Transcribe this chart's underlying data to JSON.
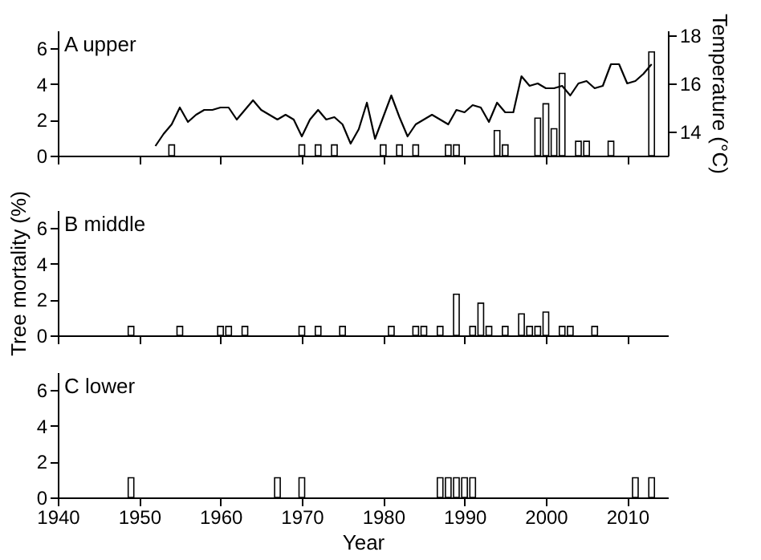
{
  "chart_data": [
    {
      "type": "bar",
      "title": "A  upper",
      "y2label": "Temperature (°C)",
      "xlim": [
        1940,
        2015
      ],
      "xticks": [
        1940,
        1950,
        1960,
        1970,
        1980,
        1990,
        2000,
        2010
      ],
      "ylim": [
        0,
        7
      ],
      "yticks": [
        0,
        2,
        4,
        6
      ],
      "y2lim": [
        13,
        18.2
      ],
      "y2ticks": [
        14,
        16,
        18
      ],
      "tick_labels": "y",
      "x": [
        1954,
        1970,
        1972,
        1974,
        1980,
        1982,
        1984,
        1988,
        1989,
        1994,
        1995,
        1999,
        2000,
        2001,
        2002,
        2004,
        2005,
        2008,
        2013
      ],
      "series": [
        {
          "type": "bar",
          "color": "#ffffff",
          "values": [
            0.6,
            0.6,
            0.6,
            0.6,
            0.6,
            0.6,
            0.6,
            0.6,
            0.6,
            1.4,
            0.6,
            2.1,
            2.9,
            1.5,
            4.6,
            0.8,
            0.8,
            0.8,
            5.8
          ]
        },
        {
          "type": "line",
          "axis": "y2",
          "color": "#000000",
          "x": [
            1952,
            1953,
            1954,
            1955,
            1956,
            1957,
            1958,
            1959,
            1960,
            1961,
            1962,
            1963,
            1964,
            1965,
            1966,
            1967,
            1968,
            1969,
            1970,
            1971,
            1972,
            1973,
            1974,
            1975,
            1976,
            1977,
            1978,
            1979,
            1980,
            1981,
            1982,
            1983,
            1984,
            1985,
            1986,
            1987,
            1988,
            1989,
            1990,
            1991,
            1992,
            1993,
            1994,
            1995,
            1996,
            1997,
            1998,
            1999,
            2000,
            2001,
            2002,
            2003,
            2004,
            2005,
            2006,
            2007,
            2008,
            2009,
            2010,
            2011,
            2012,
            2013
          ],
          "values": [
            13.4,
            13.9,
            14.3,
            15.0,
            14.4,
            14.7,
            14.9,
            14.9,
            15.0,
            15.0,
            14.5,
            14.9,
            15.3,
            14.9,
            14.7,
            14.5,
            14.7,
            14.5,
            13.8,
            14.5,
            14.9,
            14.5,
            14.6,
            14.3,
            13.5,
            14.1,
            15.2,
            13.7,
            14.6,
            15.5,
            14.6,
            13.8,
            14.3,
            14.5,
            14.7,
            14.5,
            14.3,
            14.9,
            14.8,
            15.1,
            15.0,
            14.4,
            15.2,
            14.8,
            14.8,
            16.3,
            15.9,
            16.0,
            15.8,
            15.8,
            15.9,
            15.5,
            16.0,
            16.1,
            15.8,
            15.9,
            16.8,
            16.8,
            16.0,
            16.1,
            16.4,
            16.8
          ]
        }
      ]
    },
    {
      "type": "bar",
      "title": "B  middle",
      "ylabel": "Tree mortality (%)",
      "xlim": [
        1940,
        2015
      ],
      "xticks": [
        1940,
        1950,
        1960,
        1970,
        1980,
        1990,
        2000,
        2010
      ],
      "ylim": [
        0,
        7
      ],
      "yticks": [
        0,
        2,
        4,
        6
      ],
      "tick_labels": "y",
      "color": "#ffffff",
      "x": [
        1949,
        1955,
        1960,
        1961,
        1963,
        1970,
        1972,
        1975,
        1981,
        1984,
        1985,
        1987,
        1989,
        1991,
        1992,
        1993,
        1995,
        1997,
        1998,
        1999,
        2000,
        2002,
        2003,
        2006
      ],
      "values": [
        0.5,
        0.5,
        0.5,
        0.5,
        0.5,
        0.5,
        0.5,
        0.5,
        0.5,
        0.5,
        0.5,
        0.5,
        2.3,
        0.5,
        1.8,
        0.5,
        0.5,
        1.2,
        0.5,
        0.5,
        1.3,
        0.5,
        0.5,
        0.5
      ]
    },
    {
      "type": "bar",
      "title": "C  lower",
      "xlabel": "Year",
      "xlim": [
        1940,
        2015
      ],
      "xticks": [
        1940,
        1950,
        1960,
        1970,
        1980,
        1990,
        2000,
        2010
      ],
      "ylim": [
        0,
        7
      ],
      "yticks": [
        0,
        2,
        4,
        6
      ],
      "color": "#ffffff",
      "x": [
        1949,
        1967,
        1970,
        1987,
        1988,
        1989,
        1990,
        1991,
        2011,
        2013
      ],
      "values": [
        1.1,
        1.1,
        1.1,
        1.1,
        1.1,
        1.1,
        1.1,
        1.1,
        1.1,
        1.1
      ]
    }
  ]
}
